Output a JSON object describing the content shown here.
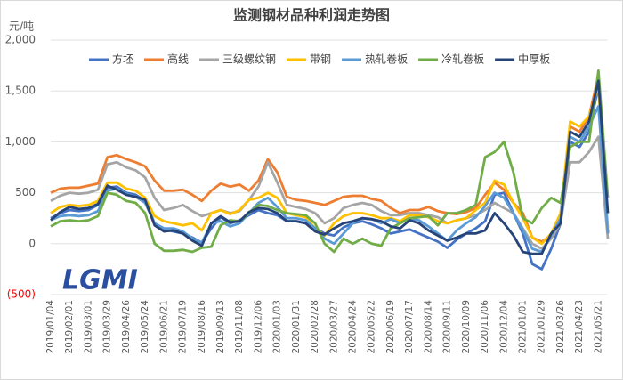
{
  "chart_data": {
    "type": "line",
    "title": "监测钢材品种利润走势图",
    "y_label": "元/吨",
    "watermark": "LGMI",
    "ylim": [
      -500,
      2000
    ],
    "yticks": [
      {
        "value": -500,
        "label": "(500)"
      },
      0,
      500,
      {
        "value": 1000,
        "label": "1,000"
      },
      {
        "value": 1500,
        "label": "1,500"
      },
      {
        "value": 2000,
        "label": "2,000"
      }
    ],
    "negative_tick_color": "#ff0000",
    "grid": true,
    "legend": "top",
    "categories": [
      "2019/01/04",
      null,
      "2019/02/01",
      null,
      "2019/03/01",
      null,
      "2019/03/29",
      null,
      "2019/04/26",
      null,
      "2019/05/24",
      null,
      "2019/06/21",
      null,
      "2019/07/19",
      null,
      "2019/08/16",
      null,
      "2019/09/13",
      null,
      "2019/11/08",
      null,
      "2019/12/06",
      null,
      "2020/01/03",
      null,
      "2020/01/31",
      null,
      "2020/02/28",
      null,
      "2020/03/27",
      null,
      "2020/04/24",
      null,
      "2020/05/22",
      null,
      "2020/06/19",
      null,
      "2020/07/17",
      null,
      "2020/08/14",
      null,
      "2020/09/11",
      null,
      "2020/10/09",
      null,
      "2020/11/06",
      null,
      "2020/12/04",
      null,
      "2021/01/01",
      null,
      "2021/01/29",
      null,
      "2021/03/26",
      null,
      "2021/04/23",
      null,
      "2021/05/21",
      null
    ],
    "series": [
      {
        "name": "方坯",
        "color": "#4472c4",
        "values": [
          250,
          300,
          330,
          320,
          330,
          380,
          550,
          560,
          500,
          480,
          420,
          200,
          140,
          120,
          100,
          60,
          10,
          150,
          260,
          200,
          230,
          280,
          330,
          300,
          280,
          220,
          220,
          200,
          150,
          100,
          80,
          160,
          200,
          220,
          190,
          150,
          100,
          120,
          140,
          100,
          60,
          20,
          -40,
          40,
          100,
          150,
          220,
          480,
          500,
          300,
          100,
          -200,
          -250,
          -50,
          200,
          1000,
          950,
          1100,
          1550,
          100
        ]
      },
      {
        "name": "高线",
        "color": "#ed7d31",
        "values": [
          500,
          540,
          550,
          550,
          570,
          590,
          850,
          870,
          830,
          800,
          760,
          620,
          520,
          520,
          530,
          480,
          420,
          520,
          590,
          560,
          580,
          520,
          620,
          830,
          700,
          460,
          430,
          420,
          400,
          380,
          420,
          460,
          470,
          470,
          440,
          420,
          350,
          300,
          330,
          330,
          360,
          320,
          300,
          290,
          310,
          350,
          480,
          600,
          530,
          400,
          300,
          60,
          20,
          80,
          300,
          1150,
          1100,
          1250,
          1650,
          100
        ]
      },
      {
        "name": "三级螺纹钢",
        "color": "#a5a5a5",
        "values": [
          420,
          470,
          500,
          490,
          500,
          530,
          780,
          800,
          750,
          720,
          650,
          450,
          330,
          350,
          380,
          320,
          270,
          300,
          330,
          300,
          320,
          430,
          560,
          800,
          600,
          380,
          360,
          340,
          300,
          200,
          250,
          350,
          380,
          400,
          380,
          320,
          280,
          280,
          300,
          300,
          280,
          260,
          200,
          230,
          250,
          280,
          330,
          400,
          350,
          300,
          150,
          0,
          -50,
          50,
          200,
          800,
          800,
          900,
          1050,
          50
        ]
      },
      {
        "name": "带钢",
        "color": "#ffc000",
        "values": [
          300,
          360,
          380,
          370,
          380,
          420,
          600,
          600,
          540,
          520,
          450,
          270,
          220,
          200,
          180,
          200,
          130,
          300,
          330,
          290,
          330,
          430,
          450,
          500,
          450,
          300,
          280,
          260,
          150,
          80,
          200,
          270,
          300,
          300,
          280,
          250,
          250,
          220,
          280,
          280,
          260,
          220,
          200,
          230,
          250,
          330,
          400,
          620,
          580,
          400,
          250,
          60,
          0,
          100,
          300,
          1200,
          1150,
          1250,
          1550,
          150
        ]
      },
      {
        "name": "热轧卷板",
        "color": "#5b9bd5",
        "values": [
          230,
          270,
          280,
          270,
          280,
          320,
          520,
          540,
          490,
          460,
          400,
          200,
          150,
          150,
          120,
          50,
          10,
          200,
          220,
          170,
          200,
          300,
          400,
          450,
          360,
          250,
          250,
          230,
          150,
          50,
          0,
          100,
          200,
          250,
          240,
          200,
          240,
          200,
          250,
          230,
          170,
          100,
          30,
          130,
          200,
          260,
          370,
          500,
          450,
          300,
          130,
          -50,
          -80,
          80,
          250,
          1050,
          1000,
          1150,
          1350,
          100
        ]
      },
      {
        "name": "冷轧卷板",
        "color": "#70ad47",
        "values": [
          170,
          220,
          230,
          220,
          230,
          270,
          500,
          480,
          420,
          400,
          300,
          0,
          -70,
          -70,
          -60,
          -80,
          -40,
          -30,
          180,
          230,
          220,
          300,
          380,
          370,
          330,
          300,
          290,
          280,
          200,
          0,
          -80,
          50,
          0,
          50,
          0,
          -20,
          150,
          200,
          250,
          260,
          270,
          180,
          300,
          300,
          330,
          380,
          850,
          900,
          1000,
          700,
          250,
          200,
          350,
          450,
          400,
          950,
          1000,
          1000,
          1700,
          450
        ]
      },
      {
        "name": "中厚板",
        "color": "#264478",
        "values": [
          230,
          310,
          360,
          340,
          350,
          390,
          570,
          530,
          480,
          460,
          430,
          180,
          120,
          130,
          100,
          30,
          -20,
          200,
          270,
          210,
          220,
          310,
          350,
          340,
          300,
          220,
          220,
          200,
          120,
          90,
          150,
          200,
          220,
          250,
          240,
          220,
          170,
          150,
          230,
          200,
          130,
          80,
          30,
          60,
          100,
          100,
          130,
          300,
          200,
          80,
          -80,
          -100,
          -100,
          100,
          200,
          1100,
          1050,
          1200,
          1600,
          300
        ]
      }
    ]
  }
}
